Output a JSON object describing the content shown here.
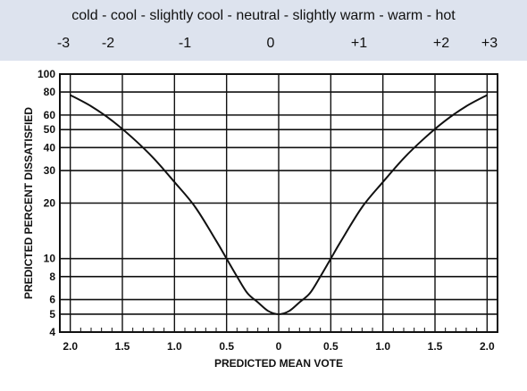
{
  "scale": {
    "words": "cold - cool - slightly cool - neutral - slightly warm - warm - hot",
    "numbers": [
      "-3",
      "-2",
      "-1",
      "0",
      "+1",
      "+2",
      "+3"
    ]
  },
  "chart_data": {
    "type": "line",
    "xlabel": "PREDICTED MEAN VOTE",
    "ylabel": "PREDICTED PERCENT DISSATISFIED",
    "x_ticks": [
      {
        "v": -2.0,
        "label": "2.0"
      },
      {
        "v": -1.5,
        "label": "1.5"
      },
      {
        "v": -1.0,
        "label": "1.0"
      },
      {
        "v": -0.5,
        "label": "0.5"
      },
      {
        "v": 0,
        "label": "0"
      },
      {
        "v": 0.5,
        "label": "0.5"
      },
      {
        "v": 1.0,
        "label": "1.0"
      },
      {
        "v": 1.5,
        "label": "1.5"
      },
      {
        "v": 2.0,
        "label": "2.0"
      }
    ],
    "y_ticks": [
      4,
      5,
      6,
      8,
      10,
      20,
      30,
      40,
      50,
      60,
      80,
      100
    ],
    "y_scale": "log",
    "xlim": [
      -2.1,
      2.1
    ],
    "ylim": [
      4,
      100
    ],
    "grid": true,
    "series": [
      {
        "x": [
          -2.0,
          -1.8,
          -1.6,
          -1.4,
          -1.2,
          -1.0,
          -0.8,
          -0.6,
          -0.5,
          -0.4,
          -0.3,
          -0.2,
          -0.1,
          0,
          0.1,
          0.2,
          0.3,
          0.4,
          0.5,
          0.6,
          0.8,
          1.0,
          1.2,
          1.4,
          1.6,
          1.8,
          2.0
        ],
        "values": [
          77,
          67,
          56,
          45,
          35,
          26,
          19,
          12.5,
          10,
          8,
          6.5,
          5.8,
          5.2,
          5,
          5.2,
          5.8,
          6.5,
          8,
          10,
          12.5,
          19,
          26,
          35,
          45,
          56,
          67,
          77
        ]
      }
    ],
    "colors": {
      "line": "#111111",
      "grid": "#111111"
    }
  }
}
